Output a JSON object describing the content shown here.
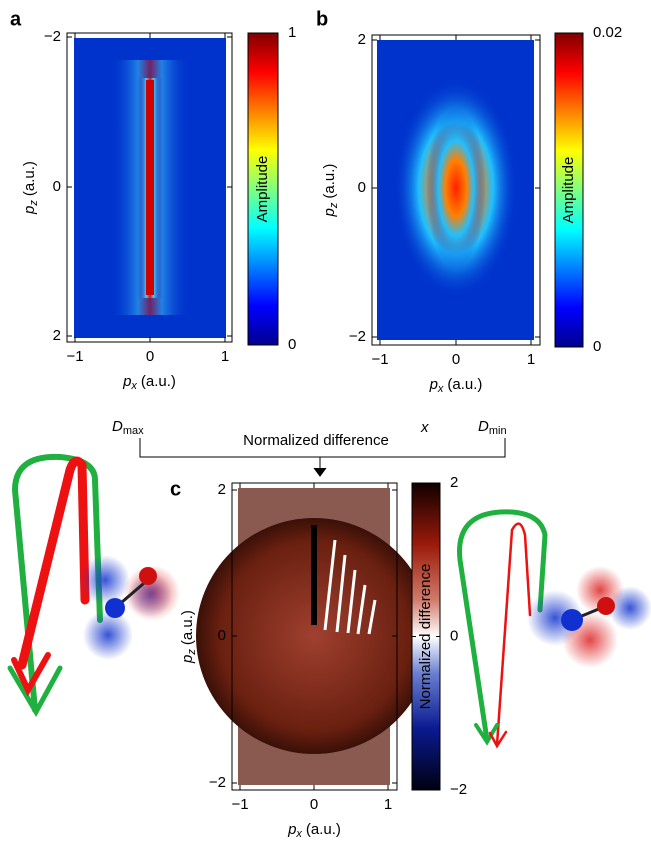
{
  "panels": [
    {
      "label": "a",
      "x_label": {
        "symbol": "p",
        "subscript": "x",
        "unit": "(a.u.)"
      },
      "y_label": {
        "symbol": "p",
        "subscript": "z",
        "unit": "(a.u.)"
      },
      "xticks": [
        "−1",
        "0",
        "1"
      ],
      "yticks": [
        "−2",
        "0",
        "2"
      ],
      "colorbar": {
        "label": "Amplitude",
        "ticks": [
          "0",
          "1"
        ]
      }
    },
    {
      "label": "b",
      "x_label": {
        "symbol": "p",
        "subscript": "x",
        "unit": "(a.u.)"
      },
      "y_label": {
        "symbol": "p",
        "subscript": "z",
        "unit": "(a.u.)"
      },
      "xticks": [
        "−1",
        "0",
        "1"
      ],
      "yticks": [
        "2",
        "0",
        "−2"
      ],
      "colorbar": {
        "label": "Amplitude",
        "ticks": [
          "0",
          "0.02"
        ]
      }
    },
    {
      "label": "c",
      "x_label": {
        "symbol": "p",
        "subscript": "x",
        "unit": "(a.u.)"
      },
      "y_label": {
        "symbol": "p",
        "subscript": "z",
        "unit": "(a.u.)"
      },
      "xticks": [
        "−1",
        "0",
        "1"
      ],
      "yticks": [
        "2",
        "0",
        "−2"
      ],
      "colorbar": {
        "label": "Normalized difference",
        "ticks": [
          "−2",
          "0",
          "2"
        ]
      }
    }
  ],
  "schematic": {
    "d_max": {
      "symbol": "D",
      "subscript": "max"
    },
    "d_min": {
      "symbol": "D",
      "subscript": "min"
    },
    "title": "Normalized difference",
    "axis": "x"
  }
}
